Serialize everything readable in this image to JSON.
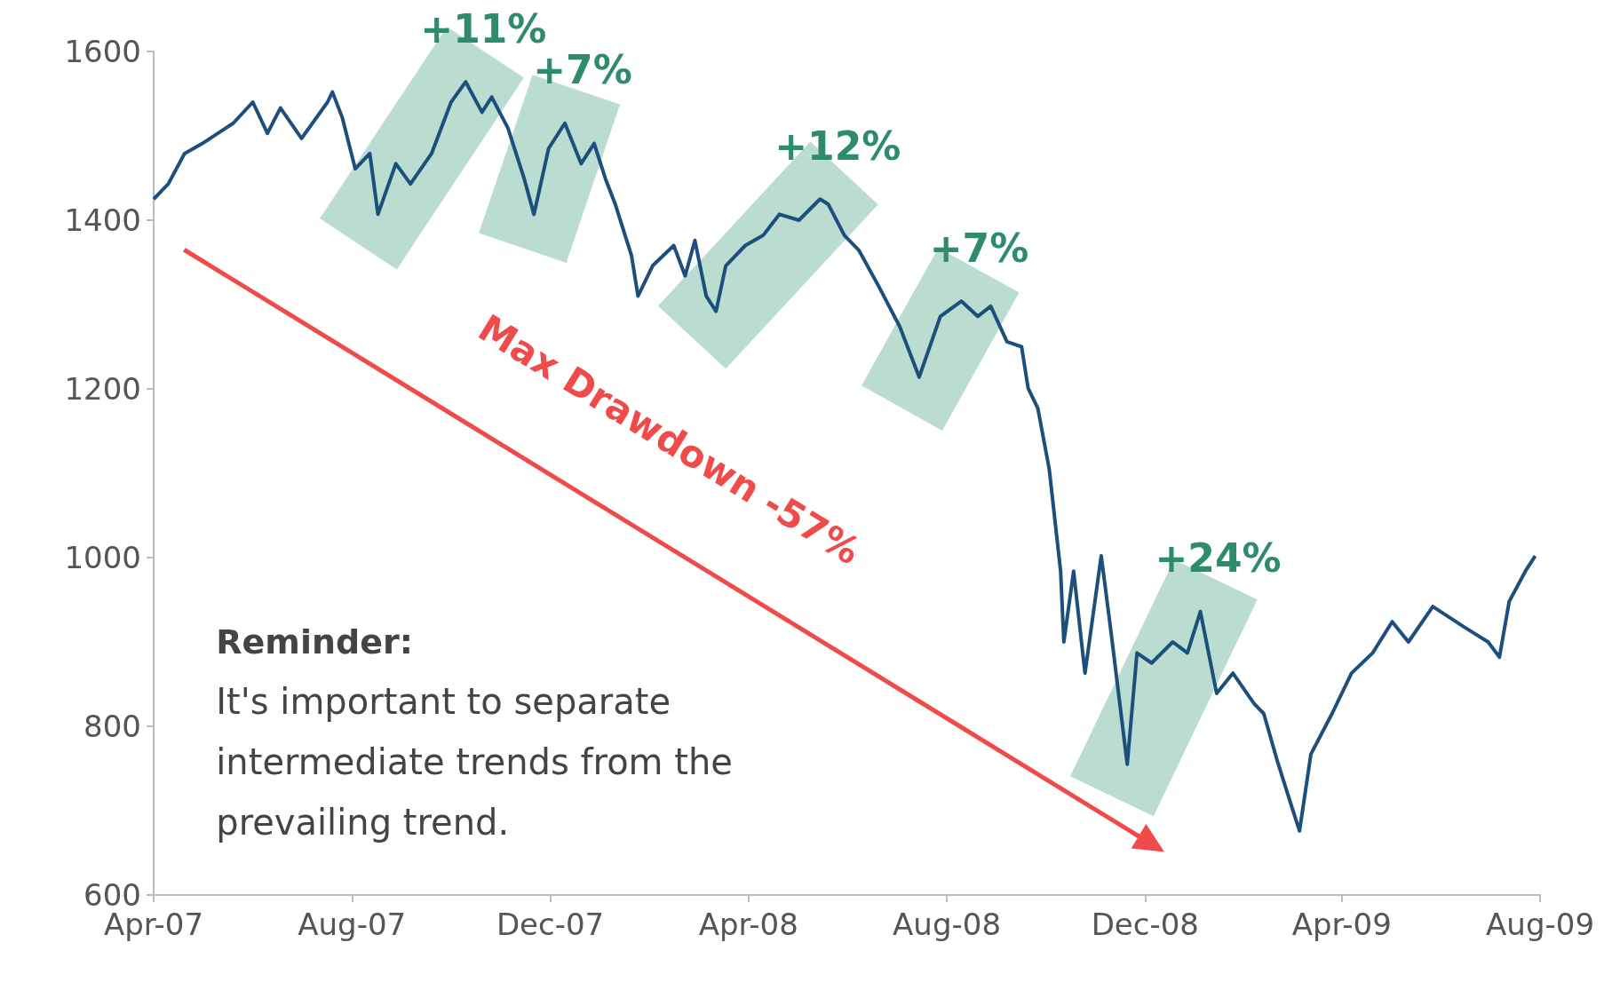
{
  "chart_data": {
    "type": "line",
    "x": [
      "2007-04-01",
      "2007-04-10",
      "2007-04-20",
      "2007-05-01",
      "2007-05-20",
      "2007-06-01",
      "2007-06-10",
      "2007-06-18",
      "2007-07-01",
      "2007-07-17",
      "2007-07-20",
      "2007-07-26",
      "2007-08-03",
      "2007-08-12",
      "2007-08-17",
      "2007-08-28",
      "2007-09-06",
      "2007-09-19",
      "2007-10-01",
      "2007-10-10",
      "2007-10-20",
      "2007-10-26",
      "2007-11-05",
      "2007-11-15",
      "2007-11-21",
      "2007-11-30",
      "2007-12-10",
      "2007-12-20",
      "2007-12-28",
      "2008-01-04",
      "2008-01-10",
      "2008-01-20",
      "2008-01-24",
      "2008-02-02",
      "2008-02-15",
      "2008-02-22",
      "2008-02-28",
      "2008-03-06",
      "2008-03-12",
      "2008-03-18",
      "2008-03-30",
      "2008-04-10",
      "2008-04-20",
      "2008-05-02",
      "2008-05-15",
      "2008-05-20",
      "2008-05-30",
      "2008-06-08",
      "2008-06-20",
      "2008-07-03",
      "2008-07-15",
      "2008-07-28",
      "2008-08-10",
      "2008-08-20",
      "2008-08-28",
      "2008-09-07",
      "2008-09-16",
      "2008-09-20",
      "2008-09-26",
      "2008-10-03",
      "2008-10-10",
      "2008-10-12",
      "2008-10-18",
      "2008-10-25",
      "2008-11-04",
      "2008-11-10",
      "2008-11-20",
      "2008-11-26",
      "2008-12-05",
      "2008-12-18",
      "2008-12-27",
      "2009-01-04",
      "2009-01-14",
      "2009-01-24",
      "2009-02-06",
      "2009-02-12",
      "2009-02-20",
      "2009-03-01",
      "2009-03-06",
      "2009-03-13",
      "2009-03-26",
      "2009-04-07",
      "2009-04-20",
      "2009-05-02",
      "2009-05-12",
      "2009-05-27",
      "2009-06-15",
      "2009-06-30",
      "2009-07-07",
      "2009-07-13",
      "2009-07-23",
      "2009-07-29"
    ],
    "series": [
      {
        "color": "#1d4f7c",
        "values": [
          1425,
          1443,
          1479,
          1491,
          1515,
          1540,
          1503,
          1533,
          1497,
          1540,
          1552,
          1522,
          1461,
          1479,
          1407,
          1467,
          1443,
          1479,
          1540,
          1564,
          1528,
          1546,
          1509,
          1449,
          1407,
          1485,
          1515,
          1467,
          1491,
          1449,
          1419,
          1358,
          1310,
          1346,
          1370,
          1334,
          1376,
          1310,
          1292,
          1346,
          1370,
          1382,
          1407,
          1400,
          1425,
          1419,
          1382,
          1364,
          1322,
          1274,
          1214,
          1286,
          1304,
          1286,
          1298,
          1256,
          1250,
          1201,
          1177,
          1105,
          984,
          900,
          984,
          863,
          1002,
          912,
          755,
          887,
          875,
          900,
          887,
          936,
          839,
          863,
          827,
          815,
          761,
          706,
          676,
          767,
          815,
          863,
          887,
          924,
          900,
          942,
          918,
          900,
          882,
          948,
          984,
          1002
        ]
      }
    ],
    "xlim": [
      "2007-04-01",
      "2009-08-01"
    ],
    "xticks": [
      {
        "value": "2007-04-01",
        "label": "Apr-07"
      },
      {
        "value": "2007-08-01",
        "label": "Aug-07"
      },
      {
        "value": "2007-12-01",
        "label": "Dec-07"
      },
      {
        "value": "2008-04-01",
        "label": "Apr-08"
      },
      {
        "value": "2008-08-01",
        "label": "Aug-08"
      },
      {
        "value": "2008-12-01",
        "label": "Dec-08"
      },
      {
        "value": "2009-04-01",
        "label": "Apr-09"
      },
      {
        "value": "2009-08-01",
        "label": "Aug-09"
      }
    ],
    "ylim": [
      600,
      1600
    ],
    "yticks": [
      600,
      800,
      1000,
      1200,
      1400,
      1600
    ],
    "grid": false,
    "marker": "none",
    "line_style": "solid",
    "annotations": [
      {
        "text": "+11%",
        "x": "2007-10-10",
        "y": 1564
      },
      {
        "text": "+7%",
        "x": "2007-12-10",
        "y": 1515
      },
      {
        "text": "+12%",
        "x": "2008-05-15",
        "y": 1425
      },
      {
        "text": "+7%",
        "x": "2008-08-10",
        "y": 1304
      },
      {
        "text": "+24%",
        "x": "2009-01-04",
        "y": 936
      },
      "Max Drawdown -57%",
      "Reminder:",
      "It's important to separate intermediate trends from the prevailing trend."
    ]
  }
}
